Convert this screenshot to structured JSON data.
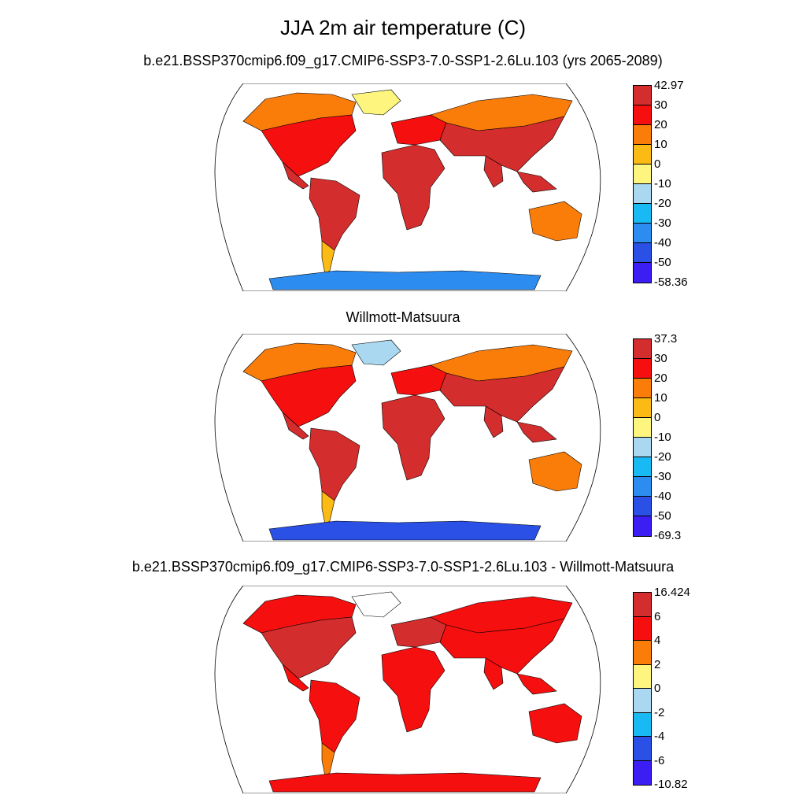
{
  "figure": {
    "title": "JJA 2m air temperature (C)",
    "panels": [
      {
        "id": "model",
        "subtitle": "b.e21.BSSP370cmip6.f09_g17.CMIP6-SSP3-7.0-SSP1-2.6Lu.103 (yrs 2065-2089)",
        "colorbar": {
          "labels": [
            "42.97",
            "30",
            "20",
            "10",
            "0",
            "-10",
            "-20",
            "-30",
            "-40",
            "-50",
            "-58.36"
          ],
          "colors": [
            "#d42d2d",
            "#f50f0f",
            "#fa7d0a",
            "#fcbb14",
            "#fdf57e",
            "#aad8f0",
            "#19b9f3",
            "#2d8cf0",
            "#2a50e6",
            "#3c1ef5"
          ]
        },
        "land_fill": {
          "tropics": "#d42d2d",
          "midlat": "#f50f0f",
          "highlat": "#fa7d0a",
          "greenland": "#fdf57e",
          "antarctica": "#2d8cf0",
          "patagonia": "#fcbb14"
        }
      },
      {
        "id": "obs",
        "subtitle": "Willmott-Matsuura",
        "colorbar": {
          "labels": [
            "37.3",
            "30",
            "20",
            "10",
            "0",
            "-10",
            "-20",
            "-30",
            "-40",
            "-50",
            "-69.3"
          ],
          "colors": [
            "#d42d2d",
            "#f50f0f",
            "#fa7d0a",
            "#fcbb14",
            "#fdf57e",
            "#aad8f0",
            "#19b9f3",
            "#2d8cf0",
            "#2a50e6",
            "#3c1ef5"
          ]
        },
        "land_fill": {
          "tropics": "#d42d2d",
          "midlat": "#f50f0f",
          "highlat": "#fa7d0a",
          "greenland": "#aad8f0",
          "antarctica": "#2a50e6",
          "patagonia": "#fcbb14"
        }
      },
      {
        "id": "diff",
        "subtitle": "b.e21.BSSP370cmip6.f09_g17.CMIP6-SSP3-7.0-SSP1-2.6Lu.103 - Willmott-Matsuura",
        "colorbar": {
          "labels": [
            "16.424",
            "6",
            "4",
            "2",
            "0",
            "-2",
            "-4",
            "-6",
            "-10.82"
          ],
          "colors": [
            "#d42d2d",
            "#f50f0f",
            "#fa7d0a",
            "#fdf57e",
            "#aad8f0",
            "#19b9f3",
            "#2a50e6",
            "#3c1ef5"
          ]
        },
        "land_fill": {
          "tropics": "#f50f0f",
          "midlat": "#d42d2d",
          "highlat": "#f50f0f",
          "greenland": "#ffffff",
          "antarctica": "#f50f0f",
          "patagonia": "#fa7d0a"
        }
      }
    ]
  }
}
